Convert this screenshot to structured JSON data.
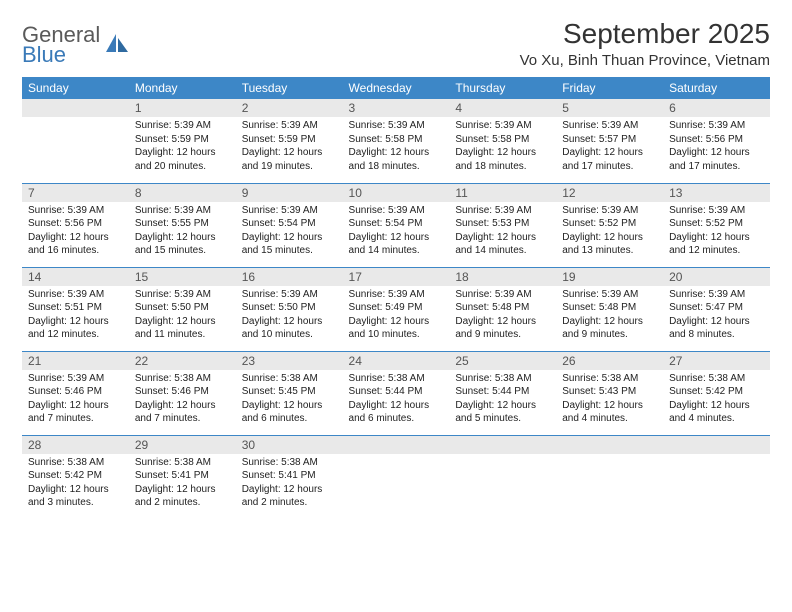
{
  "logo": {
    "main": "General",
    "sub": "Blue"
  },
  "title": "September 2025",
  "location": "Vo Xu, Binh Thuan Province, Vietnam",
  "colors": {
    "header_bg": "#3d87c7",
    "header_text": "#ffffff",
    "daynum_bg": "#e9e9e9",
    "daynum_text": "#555555",
    "row_border": "#3d87c7",
    "body_text": "#222222",
    "logo_main": "#5a5a5a",
    "logo_sub": "#3a7ab8"
  },
  "typography": {
    "title_fontsize": 28,
    "location_fontsize": 15,
    "header_fontsize": 12,
    "daynum_fontsize": 12,
    "body_fontsize": 10
  },
  "weekdays": [
    "Sunday",
    "Monday",
    "Tuesday",
    "Wednesday",
    "Thursday",
    "Friday",
    "Saturday"
  ],
  "weeks": [
    [
      {
        "n": "",
        "sr": "",
        "ss": "",
        "dl": ""
      },
      {
        "n": "1",
        "sr": "Sunrise: 5:39 AM",
        "ss": "Sunset: 5:59 PM",
        "dl": "Daylight: 12 hours and 20 minutes."
      },
      {
        "n": "2",
        "sr": "Sunrise: 5:39 AM",
        "ss": "Sunset: 5:59 PM",
        "dl": "Daylight: 12 hours and 19 minutes."
      },
      {
        "n": "3",
        "sr": "Sunrise: 5:39 AM",
        "ss": "Sunset: 5:58 PM",
        "dl": "Daylight: 12 hours and 18 minutes."
      },
      {
        "n": "4",
        "sr": "Sunrise: 5:39 AM",
        "ss": "Sunset: 5:58 PM",
        "dl": "Daylight: 12 hours and 18 minutes."
      },
      {
        "n": "5",
        "sr": "Sunrise: 5:39 AM",
        "ss": "Sunset: 5:57 PM",
        "dl": "Daylight: 12 hours and 17 minutes."
      },
      {
        "n": "6",
        "sr": "Sunrise: 5:39 AM",
        "ss": "Sunset: 5:56 PM",
        "dl": "Daylight: 12 hours and 17 minutes."
      }
    ],
    [
      {
        "n": "7",
        "sr": "Sunrise: 5:39 AM",
        "ss": "Sunset: 5:56 PM",
        "dl": "Daylight: 12 hours and 16 minutes."
      },
      {
        "n": "8",
        "sr": "Sunrise: 5:39 AM",
        "ss": "Sunset: 5:55 PM",
        "dl": "Daylight: 12 hours and 15 minutes."
      },
      {
        "n": "9",
        "sr": "Sunrise: 5:39 AM",
        "ss": "Sunset: 5:54 PM",
        "dl": "Daylight: 12 hours and 15 minutes."
      },
      {
        "n": "10",
        "sr": "Sunrise: 5:39 AM",
        "ss": "Sunset: 5:54 PM",
        "dl": "Daylight: 12 hours and 14 minutes."
      },
      {
        "n": "11",
        "sr": "Sunrise: 5:39 AM",
        "ss": "Sunset: 5:53 PM",
        "dl": "Daylight: 12 hours and 14 minutes."
      },
      {
        "n": "12",
        "sr": "Sunrise: 5:39 AM",
        "ss": "Sunset: 5:52 PM",
        "dl": "Daylight: 12 hours and 13 minutes."
      },
      {
        "n": "13",
        "sr": "Sunrise: 5:39 AM",
        "ss": "Sunset: 5:52 PM",
        "dl": "Daylight: 12 hours and 12 minutes."
      }
    ],
    [
      {
        "n": "14",
        "sr": "Sunrise: 5:39 AM",
        "ss": "Sunset: 5:51 PM",
        "dl": "Daylight: 12 hours and 12 minutes."
      },
      {
        "n": "15",
        "sr": "Sunrise: 5:39 AM",
        "ss": "Sunset: 5:50 PM",
        "dl": "Daylight: 12 hours and 11 minutes."
      },
      {
        "n": "16",
        "sr": "Sunrise: 5:39 AM",
        "ss": "Sunset: 5:50 PM",
        "dl": "Daylight: 12 hours and 10 minutes."
      },
      {
        "n": "17",
        "sr": "Sunrise: 5:39 AM",
        "ss": "Sunset: 5:49 PM",
        "dl": "Daylight: 12 hours and 10 minutes."
      },
      {
        "n": "18",
        "sr": "Sunrise: 5:39 AM",
        "ss": "Sunset: 5:48 PM",
        "dl": "Daylight: 12 hours and 9 minutes."
      },
      {
        "n": "19",
        "sr": "Sunrise: 5:39 AM",
        "ss": "Sunset: 5:48 PM",
        "dl": "Daylight: 12 hours and 9 minutes."
      },
      {
        "n": "20",
        "sr": "Sunrise: 5:39 AM",
        "ss": "Sunset: 5:47 PM",
        "dl": "Daylight: 12 hours and 8 minutes."
      }
    ],
    [
      {
        "n": "21",
        "sr": "Sunrise: 5:39 AM",
        "ss": "Sunset: 5:46 PM",
        "dl": "Daylight: 12 hours and 7 minutes."
      },
      {
        "n": "22",
        "sr": "Sunrise: 5:38 AM",
        "ss": "Sunset: 5:46 PM",
        "dl": "Daylight: 12 hours and 7 minutes."
      },
      {
        "n": "23",
        "sr": "Sunrise: 5:38 AM",
        "ss": "Sunset: 5:45 PM",
        "dl": "Daylight: 12 hours and 6 minutes."
      },
      {
        "n": "24",
        "sr": "Sunrise: 5:38 AM",
        "ss": "Sunset: 5:44 PM",
        "dl": "Daylight: 12 hours and 6 minutes."
      },
      {
        "n": "25",
        "sr": "Sunrise: 5:38 AM",
        "ss": "Sunset: 5:44 PM",
        "dl": "Daylight: 12 hours and 5 minutes."
      },
      {
        "n": "26",
        "sr": "Sunrise: 5:38 AM",
        "ss": "Sunset: 5:43 PM",
        "dl": "Daylight: 12 hours and 4 minutes."
      },
      {
        "n": "27",
        "sr": "Sunrise: 5:38 AM",
        "ss": "Sunset: 5:42 PM",
        "dl": "Daylight: 12 hours and 4 minutes."
      }
    ],
    [
      {
        "n": "28",
        "sr": "Sunrise: 5:38 AM",
        "ss": "Sunset: 5:42 PM",
        "dl": "Daylight: 12 hours and 3 minutes."
      },
      {
        "n": "29",
        "sr": "Sunrise: 5:38 AM",
        "ss": "Sunset: 5:41 PM",
        "dl": "Daylight: 12 hours and 2 minutes."
      },
      {
        "n": "30",
        "sr": "Sunrise: 5:38 AM",
        "ss": "Sunset: 5:41 PM",
        "dl": "Daylight: 12 hours and 2 minutes."
      },
      {
        "n": "",
        "sr": "",
        "ss": "",
        "dl": ""
      },
      {
        "n": "",
        "sr": "",
        "ss": "",
        "dl": ""
      },
      {
        "n": "",
        "sr": "",
        "ss": "",
        "dl": ""
      },
      {
        "n": "",
        "sr": "",
        "ss": "",
        "dl": ""
      }
    ]
  ]
}
